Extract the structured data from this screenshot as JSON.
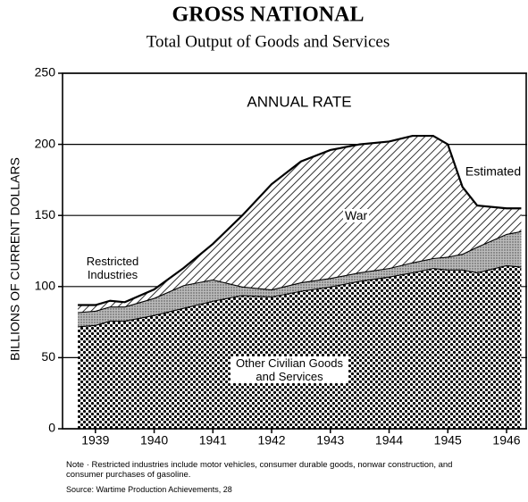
{
  "chart_data": {
    "type": "stacked_area",
    "title": "GROSS NATIONAL",
    "subtitle": "Total Output of Goods and Services",
    "y_label": "BILLIONS OF CURRENT DOLLARS",
    "annotations": [
      "ANNUAL RATE",
      "Estimated"
    ],
    "x": [
      1939.2,
      1939.5,
      1939.75,
      1940,
      1940.5,
      1941,
      1941.5,
      1942,
      1942.5,
      1943,
      1943.5,
      1944,
      1944.5,
      1944.9,
      1945.25,
      1945.5,
      1945.75,
      1946,
      1946.5,
      1946.75
    ],
    "series": [
      {
        "name": "Other Civilian Goods and Services",
        "color": "#000000",
        "values": [
          72,
          73,
          76,
          76,
          80,
          85,
          90,
          94,
          93,
          97,
          100,
          104,
          107,
          110,
          113,
          112,
          112,
          110,
          115,
          114
        ]
      },
      {
        "name": "Restricted Industries",
        "color": "#000000",
        "values": [
          10,
          10,
          10,
          10,
          12,
          16,
          15,
          6,
          5,
          6,
          6,
          6,
          6,
          7,
          7,
          9,
          11,
          18,
          22,
          25
        ]
      },
      {
        "name": "War",
        "color": "#000000",
        "values": [
          5,
          4,
          4,
          3,
          6,
          12,
          25,
          50,
          74,
          85,
          90,
          90,
          89,
          89,
          86,
          79,
          47,
          29,
          18,
          16
        ]
      }
    ],
    "xlim": [
      1938.94,
      1946.85
    ],
    "xticks": [
      {
        "value": 1939.5,
        "label": "1939"
      },
      {
        "value": 1940.5,
        "label": "1940"
      },
      {
        "value": 1941.5,
        "label": "1941"
      },
      {
        "value": 1942.5,
        "label": "1942"
      },
      {
        "value": 1943.5,
        "label": "1943"
      },
      {
        "value": 1944.5,
        "label": "1944"
      },
      {
        "value": 1945.5,
        "label": "1945"
      },
      {
        "value": 1946.5,
        "label": "1946"
      }
    ],
    "ylim": [
      0,
      250
    ],
    "yticks": [
      0,
      50,
      100,
      150,
      200,
      250
    ],
    "grid": true,
    "note": "Note · Restricted industries include motor vehicles, consumer durable goods, nonwar construction, and consumer purchases of gasoline.",
    "source": "Source: Wartime Production Achievements, 28"
  }
}
